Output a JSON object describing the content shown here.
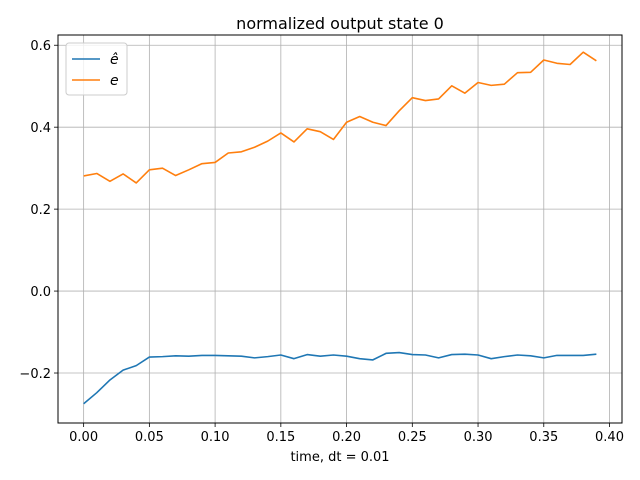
{
  "chart_data": {
    "type": "line",
    "title": "normalized output state 0",
    "xlabel": "time, dt = 0.01",
    "ylabel": "",
    "xlim": [
      -0.0195,
      0.4095
    ],
    "ylim": [
      -0.322,
      0.625
    ],
    "xticks": [
      0.0,
      0.05,
      0.1,
      0.15,
      0.2,
      0.25,
      0.3,
      0.35,
      0.4
    ],
    "xtick_labels": [
      "0.00",
      "0.05",
      "0.10",
      "0.15",
      "0.20",
      "0.25",
      "0.30",
      "0.35",
      "0.40"
    ],
    "yticks": [
      -0.2,
      0.0,
      0.2,
      0.4,
      0.6
    ],
    "ytick_labels": [
      "−0.2",
      "0.0",
      "0.2",
      "0.4",
      "0.6"
    ],
    "grid": true,
    "legend_position": "top-left",
    "x": [
      0.0,
      0.01,
      0.02,
      0.03,
      0.04,
      0.05,
      0.06,
      0.07,
      0.08,
      0.09,
      0.1,
      0.11,
      0.12,
      0.13,
      0.14,
      0.15,
      0.16,
      0.17,
      0.18,
      0.19,
      0.2,
      0.21,
      0.22,
      0.23,
      0.24,
      0.25,
      0.26,
      0.27,
      0.28,
      0.29,
      0.3,
      0.31,
      0.32,
      0.33,
      0.34,
      0.35,
      0.36,
      0.37,
      0.38,
      0.39
    ],
    "series": [
      {
        "name": "ê",
        "color": "#1f77b4",
        "values": [
          -0.275,
          -0.248,
          -0.217,
          -0.193,
          -0.182,
          -0.161,
          -0.16,
          -0.158,
          -0.159,
          -0.157,
          -0.157,
          -0.158,
          -0.159,
          -0.163,
          -0.16,
          -0.156,
          -0.165,
          -0.155,
          -0.159,
          -0.156,
          -0.159,
          -0.165,
          -0.168,
          -0.152,
          -0.15,
          -0.155,
          -0.156,
          -0.163,
          -0.155,
          -0.154,
          -0.156,
          -0.165,
          -0.16,
          -0.156,
          -0.158,
          -0.163,
          -0.157,
          -0.157,
          -0.157,
          -0.154
        ]
      },
      {
        "name": "e",
        "color": "#ff7f0e",
        "values": [
          0.281,
          0.287,
          0.268,
          0.286,
          0.264,
          0.296,
          0.3,
          0.282,
          0.296,
          0.311,
          0.314,
          0.337,
          0.34,
          0.351,
          0.366,
          0.386,
          0.364,
          0.396,
          0.389,
          0.37,
          0.412,
          0.426,
          0.412,
          0.404,
          0.44,
          0.472,
          0.465,
          0.469,
          0.501,
          0.483,
          0.509,
          0.502,
          0.505,
          0.533,
          0.534,
          0.564,
          0.556,
          0.553,
          0.583,
          0.562
        ]
      }
    ]
  }
}
